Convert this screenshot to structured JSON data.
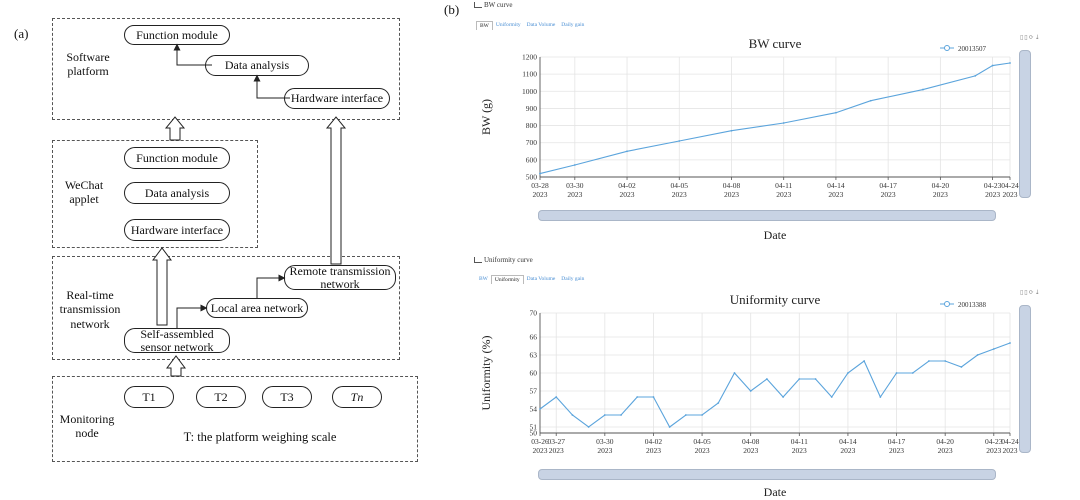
{
  "panel_a": {
    "label": "(a)",
    "software": {
      "title": "Software\nplatform",
      "function_module": "Function module",
      "data_analysis": "Data analysis",
      "hardware_interface": "Hardware interface"
    },
    "wechat": {
      "title": "WeChat\napplet",
      "function_module": "Function module",
      "data_analysis": "Data analysis",
      "hardware_interface": "Hardware interface"
    },
    "network": {
      "title": "Real-time\ntransmission\nnetwork",
      "remote": "Remote transmission\nnetwork",
      "lan": "Local area network",
      "sensor": "Self-assembled\nsensor network"
    },
    "monitoring": {
      "title": "Monitoring\nnode",
      "nodes": [
        "T1",
        "T2",
        "T3",
        "Tn"
      ],
      "caption": "T: the platform weighing scale"
    }
  },
  "panel_b": {
    "label": "(b)",
    "tabs": [
      "BW",
      "Uniformity",
      "Data Volume",
      "Daily gain"
    ],
    "tools_glyphs": "▯▯⟳⤓",
    "bw": {
      "section_title": "BW curve",
      "active_tab": 0
    },
    "uniformity": {
      "section_title": "Uniformity curve",
      "active_tab": 1
    }
  },
  "chart_data": [
    {
      "type": "line",
      "title": "BW curve",
      "xlabel": "Date",
      "ylabel": "BW (g)",
      "ylim": [
        500,
        1200
      ],
      "yticks": [
        500,
        600,
        700,
        800,
        900,
        1000,
        1100,
        1200
      ],
      "grid": true,
      "legend": "top-right",
      "series": [
        {
          "name": "20013507",
          "color": "#5ba4dc",
          "x": [
            0,
            2,
            5,
            8,
            11,
            14,
            17,
            19,
            22,
            25,
            26,
            27
          ],
          "values": [
            520,
            570,
            650,
            710,
            770,
            815,
            875,
            945,
            1010,
            1090,
            1150,
            1165
          ]
        }
      ],
      "xticks": [
        {
          "d": 0,
          "label": "03-28\n2023"
        },
        {
          "d": 2,
          "label": "03-30\n2023"
        },
        {
          "d": 5,
          "label": "04-02\n2023"
        },
        {
          "d": 8,
          "label": "04-05\n2023"
        },
        {
          "d": 11,
          "label": "04-08\n2023"
        },
        {
          "d": 14,
          "label": "04-11\n2023"
        },
        {
          "d": 17,
          "label": "04-14\n2023"
        },
        {
          "d": 20,
          "label": "04-17\n2023"
        },
        {
          "d": 23,
          "label": "04-20\n2023"
        },
        {
          "d": 26,
          "label": "04-23\n2023"
        },
        {
          "d": 27,
          "label": "04-24\n2023"
        }
      ],
      "xrange": [
        0,
        27
      ]
    },
    {
      "type": "line",
      "title": "Uniformity curve",
      "xlabel": "Date",
      "ylabel": "Uniformity (%)",
      "ylim": [
        50,
        70
      ],
      "yticks": [
        50,
        51,
        54,
        57,
        60,
        63,
        66,
        70
      ],
      "grid": true,
      "legend": "top-right",
      "series": [
        {
          "name": "20013388",
          "color": "#5ba4dc",
          "x": [
            0,
            1,
            2,
            3,
            4,
            5,
            6,
            7,
            8,
            9,
            10,
            11,
            12,
            13,
            14,
            15,
            16,
            17,
            18,
            19,
            20,
            21,
            22,
            23,
            24,
            25,
            26,
            27,
            28,
            29
          ],
          "values": [
            54,
            56,
            53,
            51,
            53,
            53,
            56,
            56,
            51,
            53,
            53,
            55,
            60,
            57,
            59,
            56,
            59,
            59,
            56,
            60,
            62,
            56,
            60,
            60,
            62,
            62,
            61,
            63,
            64,
            65
          ]
        }
      ],
      "xticks": [
        {
          "d": 0,
          "label": "03-26\n2023"
        },
        {
          "d": 1,
          "label": "03-27\n2023"
        },
        {
          "d": 4,
          "label": "03-30\n2023"
        },
        {
          "d": 7,
          "label": "04-02\n2023"
        },
        {
          "d": 10,
          "label": "04-05\n2023"
        },
        {
          "d": 13,
          "label": "04-08\n2023"
        },
        {
          "d": 16,
          "label": "04-11\n2023"
        },
        {
          "d": 19,
          "label": "04-14\n2023"
        },
        {
          "d": 22,
          "label": "04-17\n2023"
        },
        {
          "d": 25,
          "label": "04-20\n2023"
        },
        {
          "d": 28,
          "label": "04-23\n2023"
        },
        {
          "d": 29,
          "label": "04-24\n2023"
        }
      ],
      "xrange": [
        0,
        29
      ]
    }
  ]
}
